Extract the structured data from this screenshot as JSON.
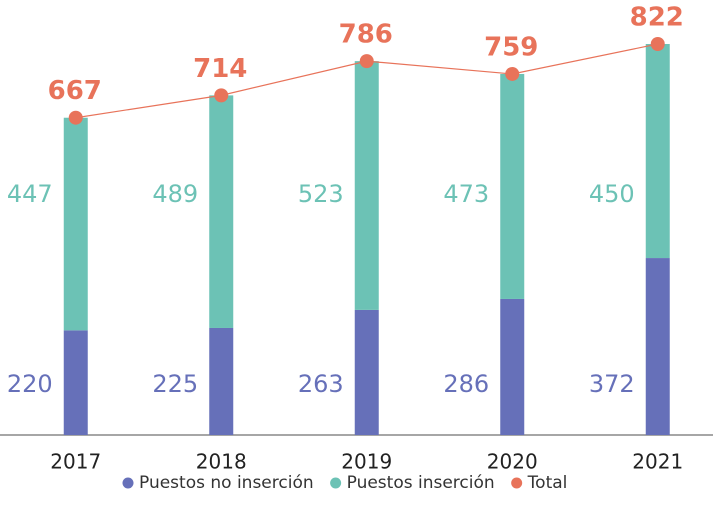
{
  "chart_data": {
    "type": "stacked-bar-line",
    "categories": [
      "2017",
      "2018",
      "2019",
      "2020",
      "2021"
    ],
    "series": [
      {
        "name": "Puestos no inserción",
        "color": "#6670b9",
        "values": [
          220,
          225,
          263,
          286,
          372
        ]
      },
      {
        "name": "Puestos inserción",
        "color": "#6cc2b5",
        "values": [
          447,
          489,
          523,
          473,
          450
        ]
      },
      {
        "name": "Total",
        "color": "#e8735a",
        "values": [
          667,
          714,
          786,
          759,
          822
        ]
      }
    ],
    "legend": "bottom"
  }
}
